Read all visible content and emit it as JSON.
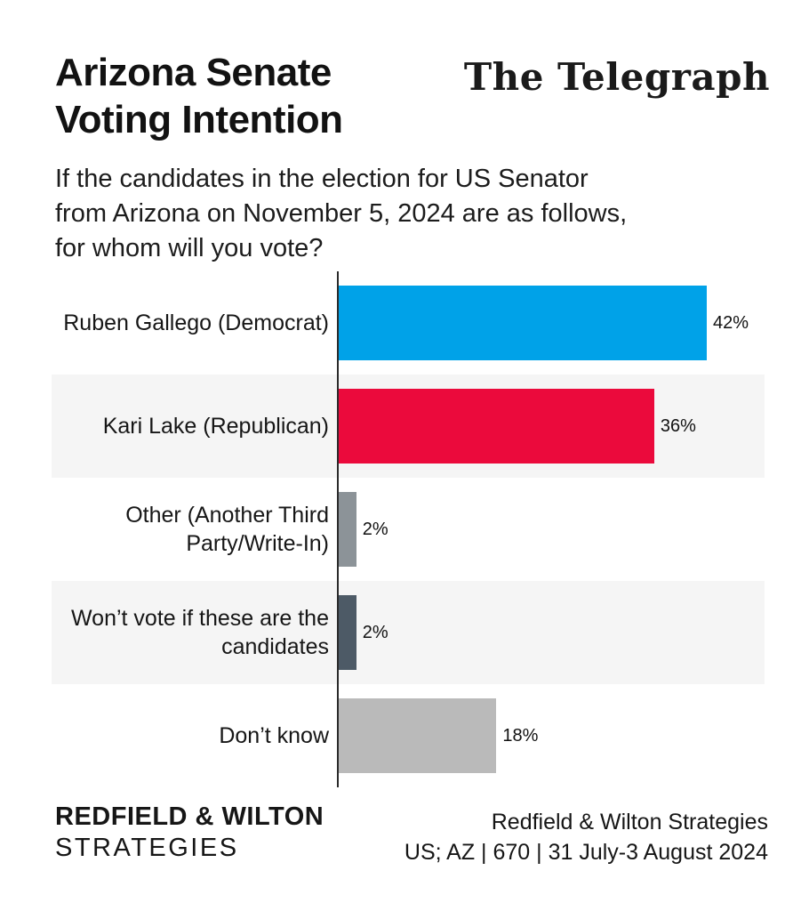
{
  "header": {
    "title_line1": "Arizona Senate",
    "title_line2": "Voting Intention",
    "brand": "The Telegraph",
    "subtitle_lines": [
      "If the candidates in the election for US Senator",
      "from Arizona on November 5, 2024 are as follows,",
      "for whom will you vote?"
    ]
  },
  "chart_data": {
    "type": "bar",
    "orientation": "horizontal",
    "categories": [
      "Ruben Gallego (Democrat)",
      "Kari Lake (Republican)",
      "Other (Another Third Party/Write-In)",
      "Won’t vote if these are the candidates",
      "Don’t know"
    ],
    "values": [
      42,
      36,
      2,
      2,
      18
    ],
    "value_labels": [
      "42%",
      "36%",
      "2%",
      "2%",
      "18%"
    ],
    "colors": [
      "#00A2E8",
      "#EB0A3C",
      "#8C9398",
      "#4D5A66",
      "#BABABA"
    ],
    "xlim": [
      0,
      48.8
    ],
    "grid": false,
    "legend": "none",
    "row_stripe_color": "#F5F5F5",
    "axis_color": "#2B2B2B",
    "title": "Arizona Senate Voting Intention",
    "xlabel": "",
    "ylabel": ""
  },
  "footer": {
    "brand_line1": "REDFIELD & WILTON",
    "brand_line2": "STRATEGIES",
    "source_line1": "Redfield & Wilton Strategies",
    "source_line2": "US; AZ | 670 | 31 July-3 August 2024"
  }
}
